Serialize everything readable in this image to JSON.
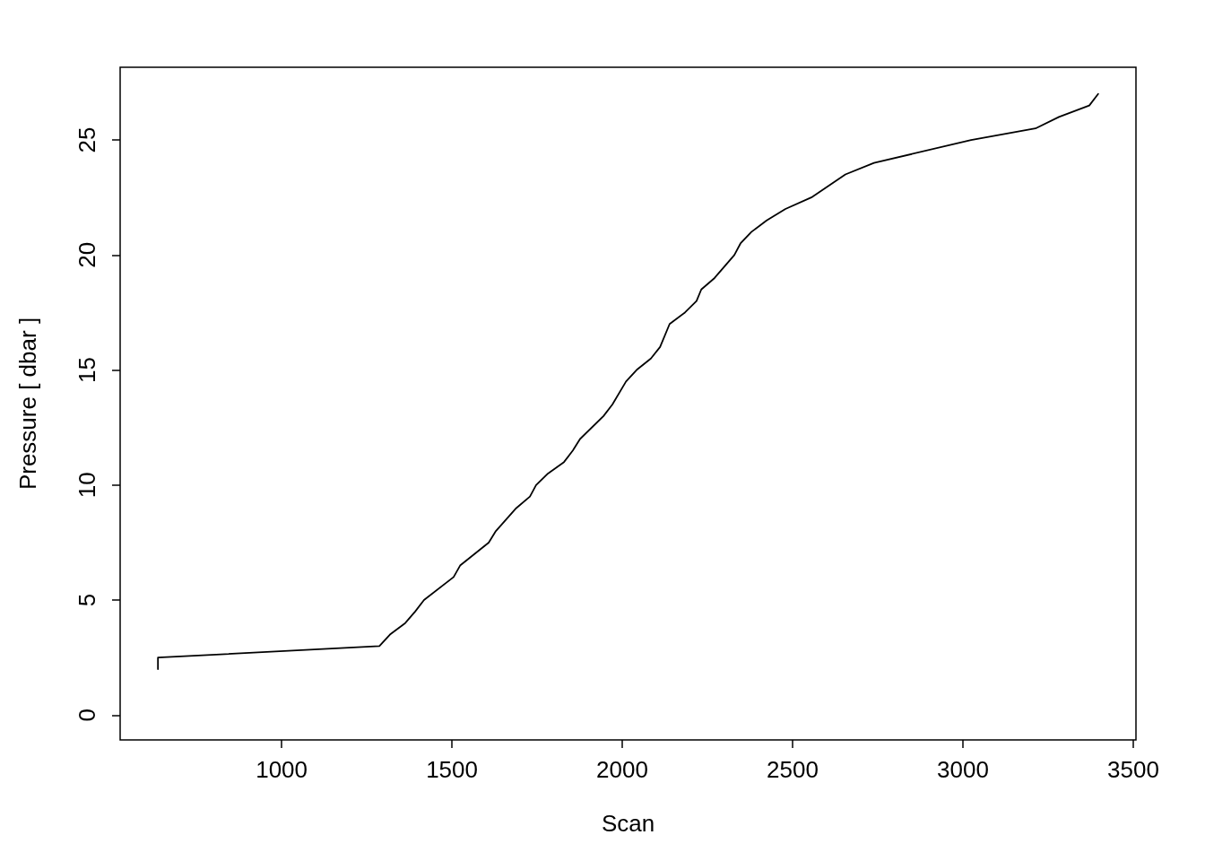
{
  "chart_data": {
    "type": "line",
    "xlabel": "Scan",
    "ylabel": "Pressure [ dbar ]",
    "x": [
      637,
      637,
      1287,
      1318,
      1363,
      1392,
      1418,
      1505,
      1524,
      1608,
      1629,
      1689,
      1729,
      1747,
      1782,
      1829,
      1855,
      1876,
      1945,
      1971,
      2011,
      2042,
      2084,
      2111,
      2139,
      2184,
      2218,
      2232,
      2271,
      2300,
      2329,
      2347,
      2379,
      2424,
      2479,
      2555,
      2655,
      2739,
      3024,
      3213,
      3282,
      3371,
      3397
    ],
    "values": [
      2,
      2.5,
      3,
      3.5,
      4,
      4.5,
      5,
      6,
      6.5,
      7.5,
      8,
      9,
      9.5,
      10,
      10.5,
      11,
      11.5,
      12,
      13,
      13.5,
      14.5,
      15,
      15.5,
      16,
      17,
      17.5,
      18,
      18.5,
      19,
      19.5,
      20,
      20.5,
      21,
      21.5,
      22,
      22.5,
      23.5,
      24,
      25,
      25.5,
      26,
      26.5,
      27
    ],
    "color": "#000000",
    "marker": "none",
    "line_style": "solid",
    "grid": false,
    "xlim": [
      526,
      3508
    ],
    "xticks": [
      1000,
      1500,
      2000,
      2500,
      3000,
      3500
    ],
    "ylim": [
      -1.08,
      28.16
    ],
    "yticks": [
      0,
      5,
      10,
      15,
      20,
      25
    ]
  }
}
